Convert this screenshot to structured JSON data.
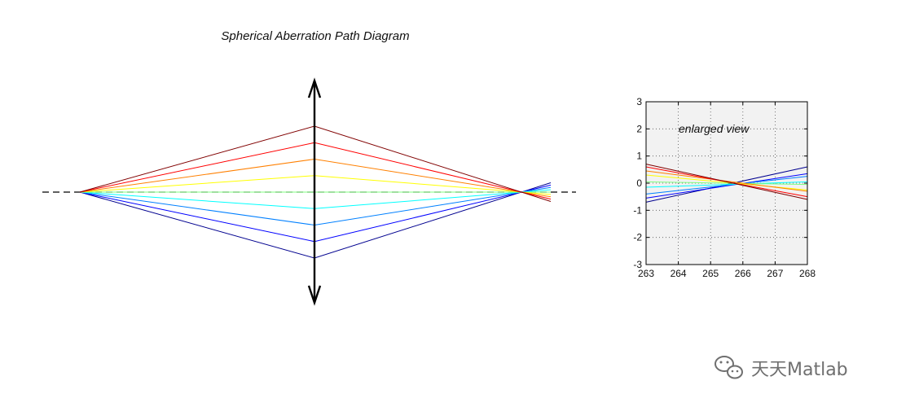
{
  "title": "Spherical Aberration Path Diagram",
  "annotation": "enlarged view",
  "watermark": "天天Matlab",
  "watermark_icon": "wechat-icon",
  "lens_icon": "double-arrow-lens-icon",
  "colors": {
    "axis_line": "#000000",
    "inset_background": "#f2f2f2",
    "grid": "#555555",
    "watermark": "#6f6f6f"
  },
  "chart_data": {
    "type": "line",
    "ray_colors": [
      "#00008f",
      "#0000ff",
      "#0080ff",
      "#00ffff",
      "#80ff80",
      "#ffff00",
      "#ff8000",
      "#ff0000",
      "#800000"
    ],
    "ray_heights_at_lens": [
      -1,
      -0.75,
      -0.5,
      -0.25,
      0,
      0.25,
      0.5,
      0.75,
      1
    ],
    "ray_inset_crossings": [
      [
        [
          263,
          -0.7
        ],
        [
          268,
          0.6
        ]
      ],
      [
        [
          263,
          -0.55
        ],
        [
          268,
          0.35
        ]
      ],
      [
        [
          263,
          -0.4
        ],
        [
          268,
          0.25
        ]
      ],
      [
        [
          263,
          -0.15
        ],
        [
          268,
          0.05
        ]
      ],
      [
        [
          263,
          0.05
        ],
        [
          268,
          -0.05
        ]
      ],
      [
        [
          263,
          0.3
        ],
        [
          268,
          -0.25
        ]
      ],
      [
        [
          263,
          0.45
        ],
        [
          268,
          -0.3
        ]
      ],
      [
        [
          263,
          0.6
        ],
        [
          268,
          -0.5
        ]
      ],
      [
        [
          263,
          0.7
        ],
        [
          268,
          -0.6
        ]
      ]
    ],
    "inset": {
      "xlim": [
        263,
        268
      ],
      "ylim": [
        -3,
        3
      ],
      "xticks": [
        "263",
        "264",
        "265",
        "266",
        "267",
        "268"
      ],
      "yticks": [
        "-3",
        "-2",
        "-1",
        "0",
        "1",
        "2",
        "3"
      ],
      "grid": true
    }
  }
}
